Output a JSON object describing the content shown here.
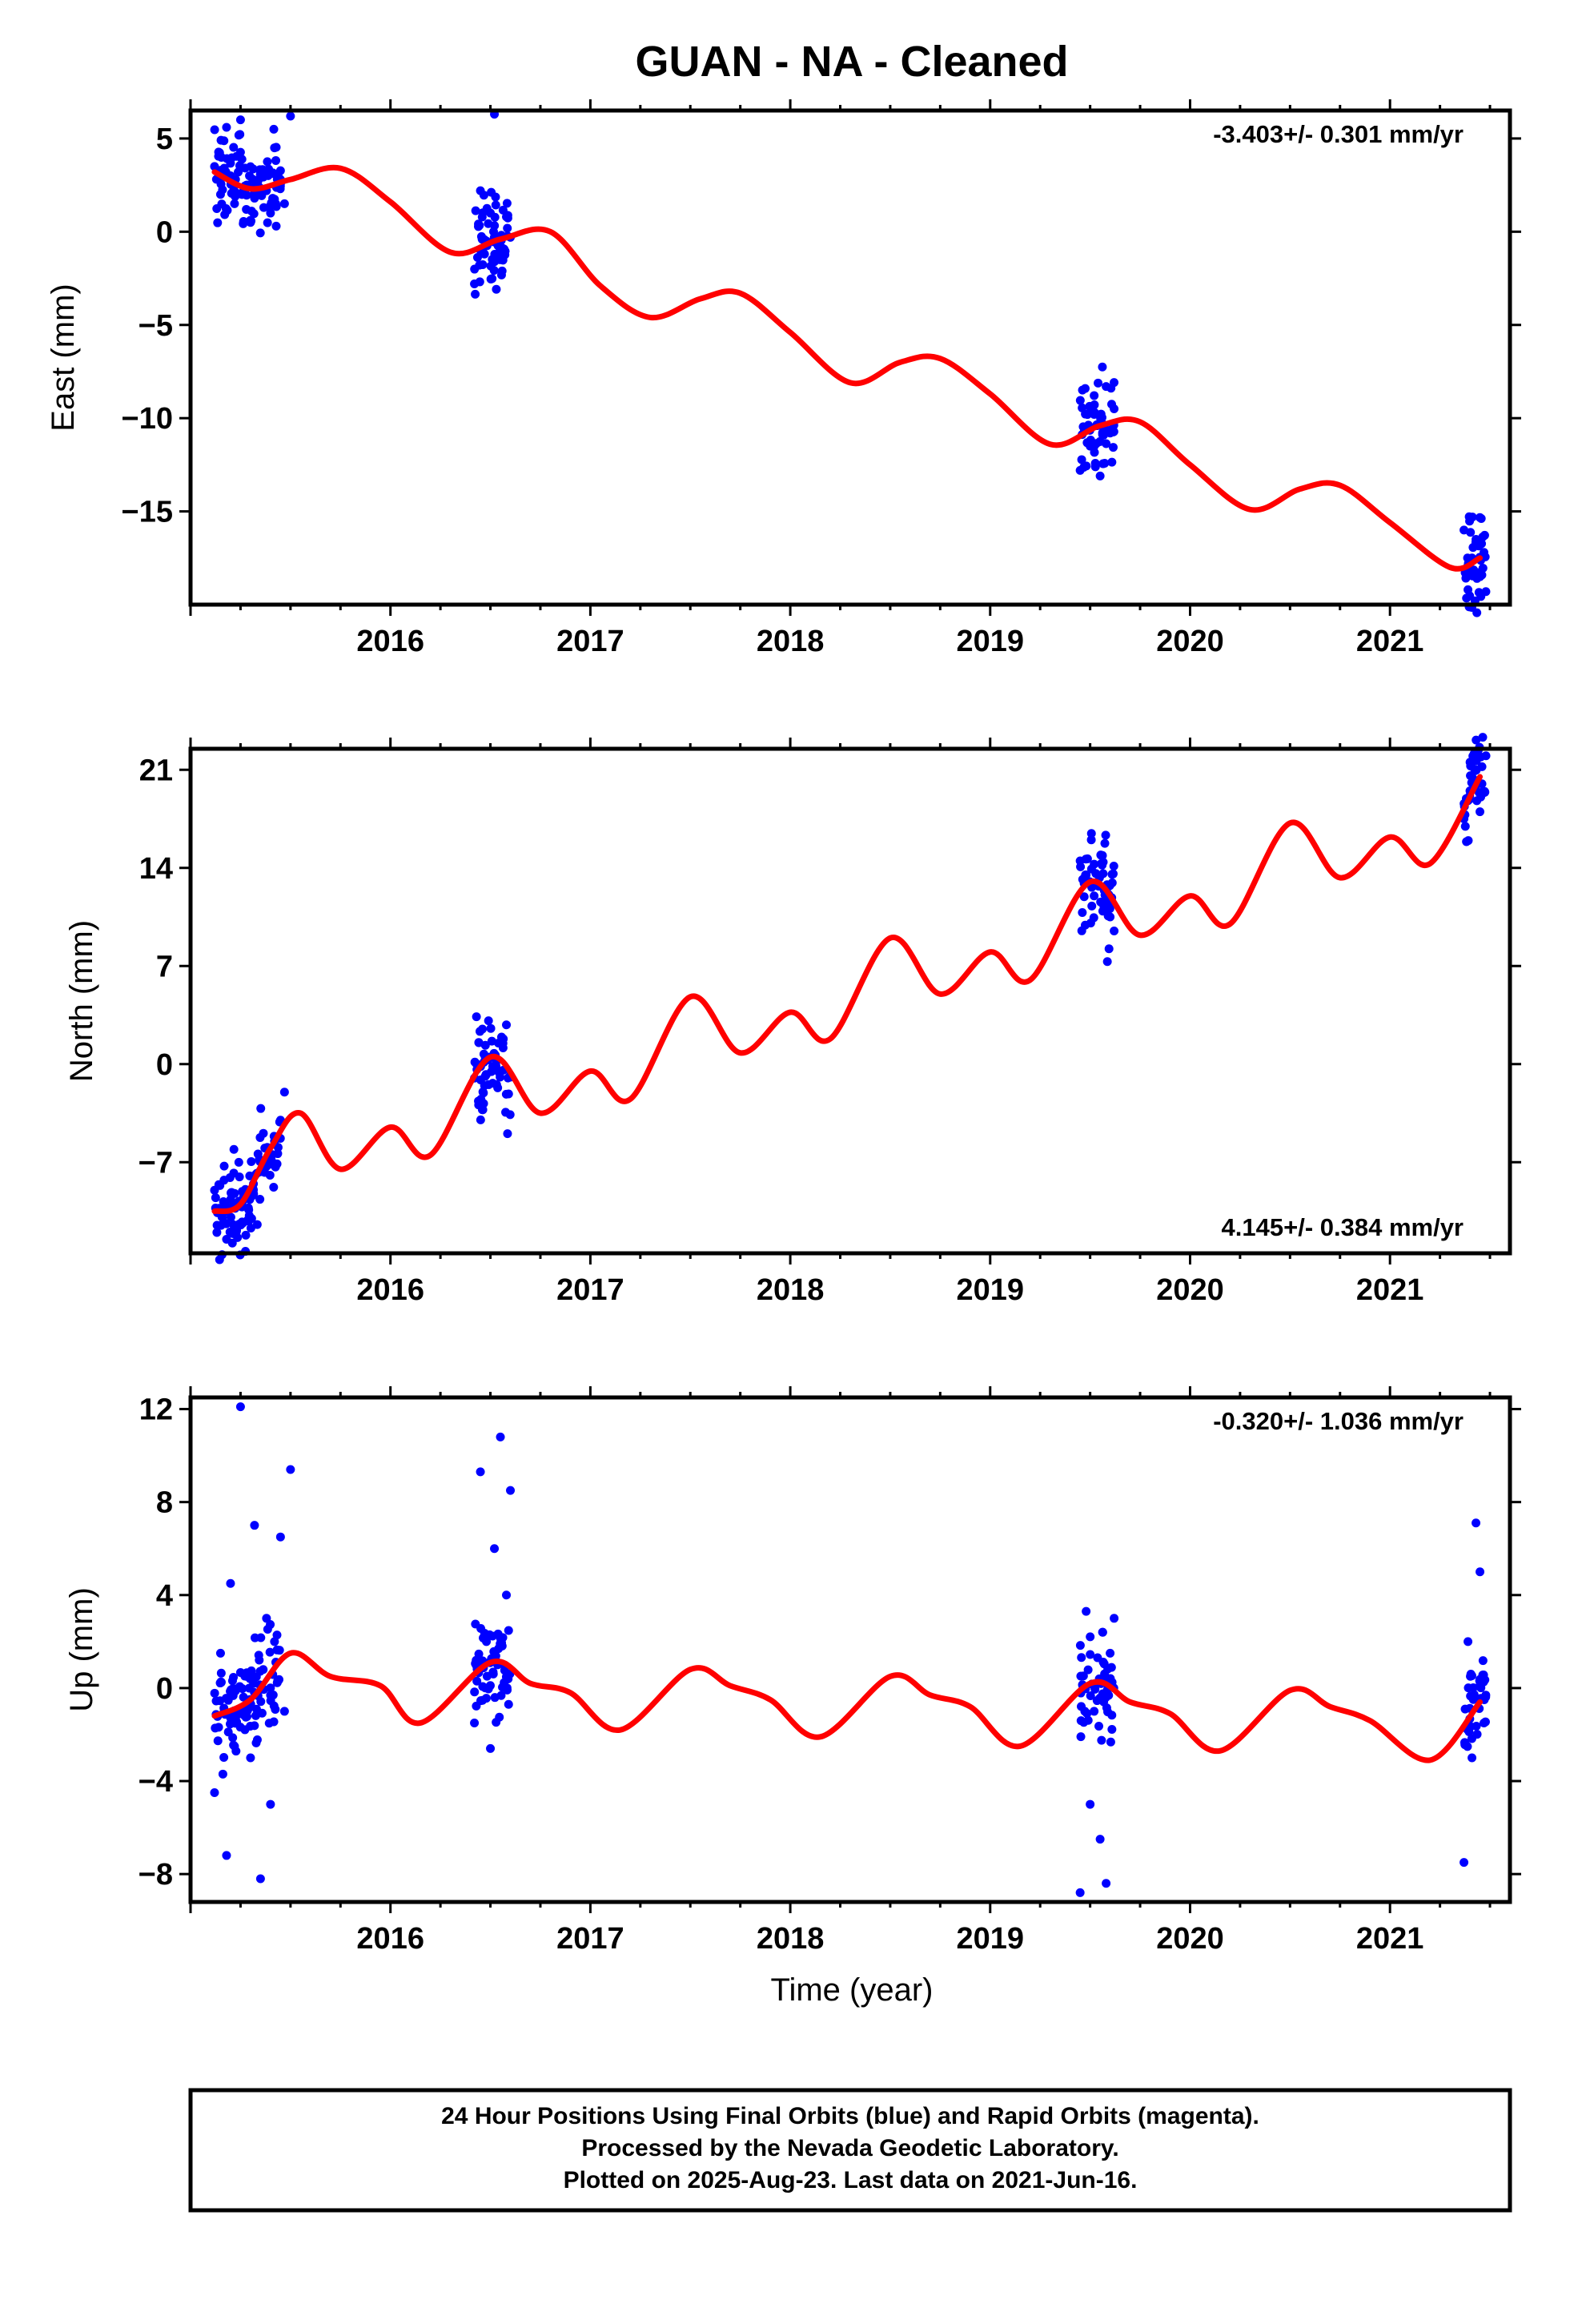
{
  "title": "GUAN  - NA - Cleaned",
  "xlabel": "Time (year)",
  "footer": [
    "24 Hour Positions Using Final Orbits (blue) and Rapid Orbits (magenta).",
    "Processed by the Nevada Geodetic Laboratory.",
    "Plotted on 2025-Aug-23. Last data on 2021-Jun-16."
  ],
  "colors": {
    "data": "#0000ff",
    "model": "#ff0000",
    "frame": "#000000"
  },
  "x_ticks": [
    2016,
    2017,
    2018,
    2019,
    2020,
    2021
  ],
  "x_range": [
    2015.0,
    2021.6
  ],
  "chart_data": [
    {
      "type": "scatter",
      "id": "east",
      "ylabel": "East (mm)",
      "rate_label": "-3.403+/- 0.301 mm/yr",
      "rate_position": "top-right",
      "ylim": [
        -20,
        6.5
      ],
      "y_ticks": [
        5,
        0,
        -5,
        -10,
        -15
      ],
      "y_tick_labels": [
        "5",
        "0",
        "−5",
        "−10",
        "−15"
      ],
      "model": {
        "x": [
          2015.12,
          2015.3,
          2015.5,
          2015.75,
          2016.0,
          2016.3,
          2016.55,
          2016.8,
          2017.05,
          2017.3,
          2017.55,
          2017.75,
          2018.0,
          2018.3,
          2018.55,
          2018.75,
          2019.0,
          2019.3,
          2019.55,
          2019.75,
          2020.0,
          2020.3,
          2020.55,
          2020.75,
          2021.0,
          2021.3,
          2021.45
        ],
        "y": [
          3.2,
          2.3,
          2.8,
          3.4,
          1.6,
          -1.1,
          -0.4,
          0.0,
          -2.9,
          -4.6,
          -3.6,
          -3.3,
          -5.4,
          -8.1,
          -7.0,
          -6.8,
          -8.7,
          -11.4,
          -10.4,
          -10.2,
          -12.5,
          -14.9,
          -13.8,
          -13.6,
          -15.6,
          -18.0,
          -17.5
        ]
      },
      "clusters": [
        {
          "start": 2015.12,
          "end": 2015.45,
          "x": [
            2015.12,
            2015.15,
            2015.18,
            2015.2,
            2015.22,
            2015.25,
            2015.28,
            2015.3,
            2015.32,
            2015.35,
            2015.38,
            2015.4,
            2015.42,
            2015.45,
            2015.47,
            2015.5
          ],
          "y": [
            3.5,
            2.0,
            5.6,
            3.0,
            1.5,
            6.0,
            2.5,
            0.5,
            1.8,
            3.2,
            2.2,
            1.0,
            4.5,
            2.8,
            1.5,
            6.2
          ]
        },
        {
          "start": 2016.42,
          "end": 2016.6,
          "x": [
            2016.42,
            2016.45,
            2016.48,
            2016.5,
            2016.52,
            2016.55,
            2016.58,
            2016.6
          ],
          "y": [
            -2.8,
            2.2,
            -0.5,
            1.0,
            6.3,
            -1.5,
            0.8,
            -0.3
          ]
        },
        {
          "start": 2019.45,
          "end": 2019.62,
          "x": [
            2019.45,
            2019.48,
            2019.5,
            2019.52,
            2019.55,
            2019.58,
            2019.6,
            2019.62
          ],
          "y": [
            -12.8,
            -10.5,
            -11.5,
            -9.8,
            -13.1,
            -8.3,
            -10.8,
            -9.5
          ]
        },
        {
          "start": 2021.37,
          "end": 2021.48,
          "x": [
            2021.37,
            2021.39,
            2021.41,
            2021.43,
            2021.45,
            2021.47
          ],
          "y": [
            -16.0,
            -19.2,
            -17.5,
            -16.5,
            -18.5,
            -17.2
          ]
        }
      ]
    },
    {
      "type": "scatter",
      "id": "north",
      "ylabel": "North (mm)",
      "rate_label": "4.145+/- 0.384 mm/yr",
      "rate_position": "bottom-right",
      "ylim": [
        -13.5,
        22.5
      ],
      "y_ticks": [
        21,
        14,
        7,
        0,
        -7
      ],
      "y_tick_labels": [
        "21",
        "14",
        "7",
        "0",
        "−7"
      ],
      "model": {
        "x": [
          2015.12,
          2015.25,
          2015.4,
          2015.55,
          2015.75,
          2016.0,
          2016.2,
          2016.5,
          2016.75,
          2017.0,
          2017.2,
          2017.5,
          2017.75,
          2018.0,
          2018.2,
          2018.5,
          2018.75,
          2019.0,
          2019.2,
          2019.5,
          2019.75,
          2020.0,
          2020.2,
          2020.5,
          2020.75,
          2021.0,
          2021.2,
          2021.45
        ],
        "y": [
          -10.5,
          -10.0,
          -6.0,
          -3.5,
          -7.5,
          -4.5,
          -6.5,
          0.5,
          -3.5,
          -0.5,
          -2.5,
          4.8,
          0.8,
          3.7,
          1.8,
          9.0,
          5.0,
          8.0,
          6.0,
          13.0,
          9.2,
          12.0,
          10.0,
          17.2,
          13.3,
          16.2,
          14.3,
          20.5
        ]
      },
      "clusters": [
        {
          "start": 2015.12,
          "end": 2015.45,
          "x": [
            2015.12,
            2015.18,
            2015.22,
            2015.27,
            2015.32,
            2015.37,
            2015.42,
            2015.45,
            2015.47
          ],
          "y": [
            -9.0,
            -12.5,
            -10.0,
            -9.5,
            -8.0,
            -7.0,
            -5.5,
            -4.0,
            -2.0
          ]
        },
        {
          "start": 2016.42,
          "end": 2016.6,
          "x": [
            2016.42,
            2016.46,
            2016.5,
            2016.54,
            2016.58,
            2016.6
          ],
          "y": [
            -1.0,
            2.5,
            0.5,
            1.5,
            2.8,
            -0.8
          ]
        },
        {
          "start": 2019.45,
          "end": 2019.62,
          "x": [
            2019.45,
            2019.48,
            2019.52,
            2019.56,
            2019.6,
            2019.62
          ],
          "y": [
            14.5,
            13.5,
            12.0,
            14.2,
            10.5,
            9.5
          ]
        },
        {
          "start": 2021.37,
          "end": 2021.48,
          "x": [
            2021.37,
            2021.4,
            2021.43,
            2021.46,
            2021.48
          ],
          "y": [
            17.5,
            19.5,
            21.0,
            20.0,
            22.0
          ]
        }
      ]
    },
    {
      "type": "scatter",
      "id": "up",
      "ylabel": "Up (mm)",
      "rate_label": "-0.320+/- 1.036 mm/yr",
      "rate_position": "top-right",
      "ylim": [
        -9.2,
        12.5
      ],
      "y_ticks": [
        12,
        8,
        4,
        0,
        -4,
        -8
      ],
      "y_tick_labels": [
        "12",
        "8",
        "4",
        "0",
        "−4",
        "−8"
      ],
      "model": {
        "x": [
          2015.12,
          2015.3,
          2015.5,
          2015.7,
          2015.95,
          2016.15,
          2016.5,
          2016.7,
          2016.9,
          2017.15,
          2017.5,
          2017.7,
          2017.9,
          2018.15,
          2018.5,
          2018.7,
          2018.9,
          2019.15,
          2019.5,
          2019.7,
          2019.9,
          2020.15,
          2020.5,
          2020.7,
          2020.9,
          2021.2,
          2021.45
        ],
        "y": [
          -1.2,
          -0.5,
          1.5,
          0.5,
          0.1,
          -1.5,
          1.1,
          0.2,
          -0.2,
          -1.8,
          0.8,
          0.1,
          -0.5,
          -2.1,
          0.5,
          -0.3,
          -0.8,
          -2.5,
          0.2,
          -0.6,
          -1.1,
          -2.7,
          -0.1,
          -0.8,
          -1.4,
          -3.1,
          -0.6
        ]
      },
      "clusters": [
        {
          "start": 2015.12,
          "end": 2015.45,
          "x": [
            2015.12,
            2015.15,
            2015.18,
            2015.2,
            2015.22,
            2015.25,
            2015.28,
            2015.3,
            2015.32,
            2015.35,
            2015.38,
            2015.4,
            2015.42,
            2015.45,
            2015.47,
            2015.5
          ],
          "y": [
            -4.5,
            1.5,
            -7.2,
            4.5,
            -2.5,
            12.1,
            0.5,
            -3.0,
            7.0,
            -8.2,
            3.0,
            -5.0,
            2.0,
            6.5,
            -1.0,
            9.4
          ]
        },
        {
          "start": 2016.42,
          "end": 2016.6,
          "x": [
            2016.42,
            2016.45,
            2016.48,
            2016.5,
            2016.52,
            2016.55,
            2016.58,
            2016.6
          ],
          "y": [
            -1.5,
            9.3,
            2.0,
            -2.6,
            6.0,
            10.8,
            4.0,
            8.5
          ]
        },
        {
          "start": 2019.45,
          "end": 2019.62,
          "x": [
            2019.45,
            2019.48,
            2019.5,
            2019.52,
            2019.55,
            2019.58,
            2019.6,
            2019.62
          ],
          "y": [
            -8.8,
            3.3,
            -5.0,
            -1.0,
            -6.5,
            -8.4,
            1.5,
            3.0
          ]
        },
        {
          "start": 2021.37,
          "end": 2021.48,
          "x": [
            2021.37,
            2021.39,
            2021.41,
            2021.43,
            2021.45,
            2021.47
          ],
          "y": [
            -7.5,
            2.0,
            -3.0,
            7.1,
            5.0,
            -1.5
          ]
        }
      ]
    }
  ]
}
